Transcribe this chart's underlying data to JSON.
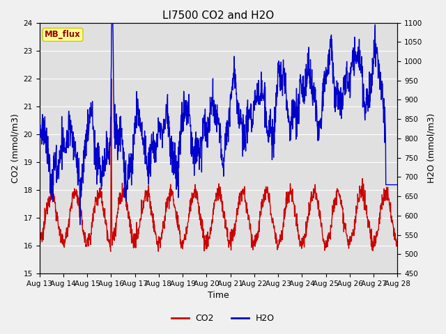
{
  "title": "LI7500 CO2 and H2O",
  "xlabel": "Time",
  "ylabel_left": "CO2 (mmol/m3)",
  "ylabel_right": "H2O (mmol/m3)",
  "ylim_left": [
    15.0,
    24.0
  ],
  "ylim_right": [
    450,
    1100
  ],
  "yticks_left": [
    15.0,
    16.0,
    17.0,
    18.0,
    19.0,
    20.0,
    21.0,
    22.0,
    23.0,
    24.0
  ],
  "yticks_right": [
    450,
    500,
    550,
    600,
    650,
    700,
    750,
    800,
    850,
    900,
    950,
    1000,
    1050,
    1100
  ],
  "xtick_labels": [
    "Aug 13",
    "Aug 14",
    "Aug 15",
    "Aug 16",
    "Aug 17",
    "Aug 18",
    "Aug 19",
    "Aug 20",
    "Aug 21",
    "Aug 22",
    "Aug 23",
    "Aug 24",
    "Aug 25",
    "Aug 26",
    "Aug 27",
    "Aug 28"
  ],
  "co2_color": "#cc0000",
  "h2o_color": "#0000cc",
  "background_color": "#e0e0e0",
  "grid_color": "#ffffff",
  "fig_bg_color": "#f0f0f0",
  "annotation_text": "MB_flux",
  "annotation_bg": "#ffff99",
  "annotation_border": "#cccc00",
  "annotation_text_color": "#990000",
  "legend_co2": "CO2",
  "legend_h2o": "H2O",
  "title_fontsize": 11,
  "axis_fontsize": 9,
  "tick_fontsize": 7.5,
  "line_width": 1.0
}
